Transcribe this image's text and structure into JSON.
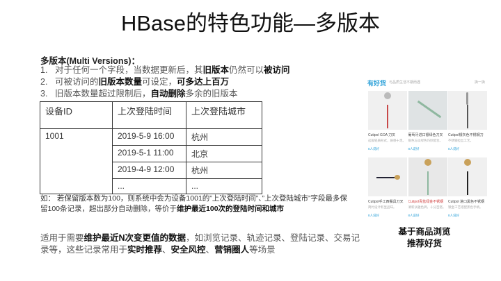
{
  "title": "HBase的特色功能—多版本",
  "subtitle": "多版本(Multi Versions)：",
  "list": [
    {
      "num": "1.",
      "parts": [
        {
          "t": "对于任何一个字段，当数据更新后，其",
          "b": false
        },
        {
          "t": "旧版本",
          "b": true
        },
        {
          "t": "仍然可以",
          "b": false
        },
        {
          "t": "被访问",
          "b": true
        }
      ]
    },
    {
      "num": "2.",
      "parts": [
        {
          "t": "可被访问的",
          "b": false
        },
        {
          "t": "旧版本数量",
          "b": true
        },
        {
          "t": "可设定，",
          "b": false
        },
        {
          "t": "可多达上百万",
          "b": true
        }
      ]
    },
    {
      "num": "3.",
      "parts": [
        {
          "t": "旧版本数量超过限制后，",
          "b": false
        },
        {
          "t": "自动删除",
          "b": true
        },
        {
          "t": "多余的旧版本",
          "b": false
        }
      ]
    }
  ],
  "table": {
    "headers": [
      "设备ID",
      "上次登陆时间",
      "上次登陆城市"
    ],
    "device_id": "1001",
    "rows": [
      [
        "2019-5-9 16:00",
        "杭州"
      ],
      [
        "2019-5-1 11:00",
        "北京"
      ],
      [
        "2019-4-9 12:00",
        "杭州"
      ],
      [
        "...",
        "..."
      ]
    ]
  },
  "note": {
    "text": "如： 若保留版本数为100，则系统中会为设备1001的”上次登陆时间”、”上次登陆城市”字段最多保留100条记录，超出部分自动删除，等价于",
    "bold": "维护最近100次的登陆时间和城市"
  },
  "uses": [
    {
      "t": "适用于需要",
      "b": false
    },
    {
      "t": "维护最近N次变更值的数据",
      "b": true
    },
    {
      "t": "，如浏览记录、轨迹记录、登陆记录、交易记录等，这些记录常用于",
      "b": false
    },
    {
      "t": "实时推荐",
      "b": true
    },
    {
      "t": "、",
      "b": false
    },
    {
      "t": "安全风控",
      "b": true
    },
    {
      "t": "、",
      "b": false
    },
    {
      "t": "营销圈人",
      "b": true
    },
    {
      "t": "等场景",
      "b": false
    }
  ],
  "product": {
    "logo": "有好货",
    "search": "与品质生活不期而遇",
    "more": "换一换",
    "items": [
      {
        "title": "Cutipol GOA 刀叉",
        "desc": "这般轻质形式，质感十足。",
        "likes": "8人说好",
        "color": "#c84848"
      },
      {
        "title": "葡萄牙进口银绿色刀叉",
        "desc": "银色与淡绿色巧妙配合。",
        "likes": "8人说好",
        "color": "#8fb8a0"
      },
      {
        "title": "Cutipol银灰色不锈钢刀",
        "desc": "不锈钢拉丝工艺。",
        "likes": "8人说好",
        "color": "#555"
      },
      {
        "title": "Cutipol手工西餐具刀叉",
        "desc": "简约设计彰显品味。",
        "likes": "8人说好",
        "color": "#223"
      },
      {
        "title": "Cutipol青蓝绿金不锈钢",
        "desc": "清新淡雅色调，十分百搭。",
        "likes": "8人说好",
        "color": "#8fb8a0"
      },
      {
        "title": "Cutipol 进口黑色不锈钢",
        "desc": "镀金工艺搭配黑色手柄。",
        "likes": "8人说好",
        "color": "#222"
      }
    ]
  },
  "caption": [
    "基于商品浏览",
    "推荐好货"
  ]
}
